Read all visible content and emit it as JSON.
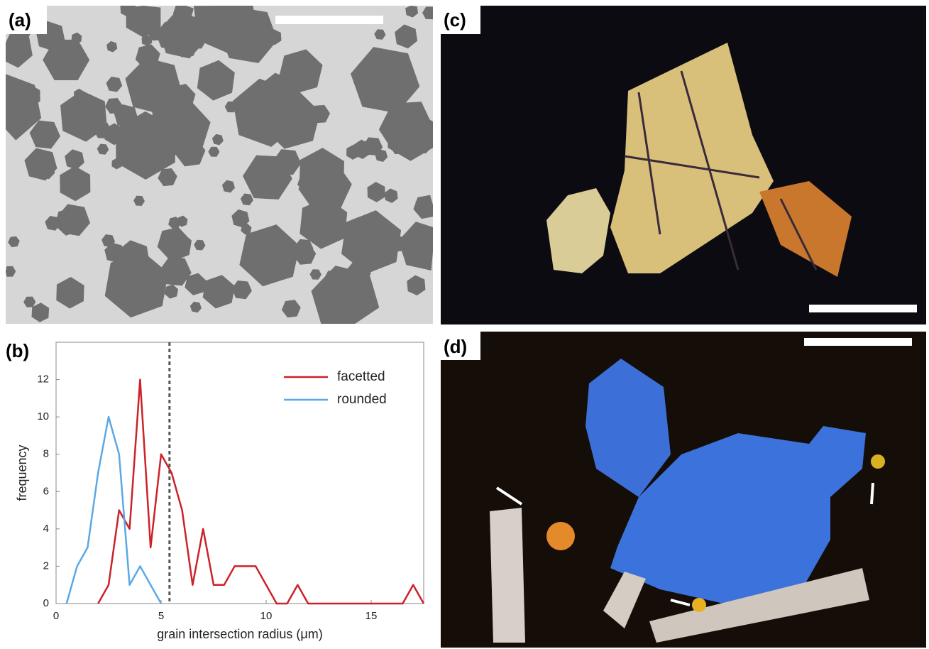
{
  "panel_labels": [
    "(a)",
    "(b)",
    "(c)",
    "(d)"
  ],
  "chart_data": {
    "type": "line",
    "xlabel": "grain intersection radius (μm)",
    "ylabel": "frequency",
    "x": [
      0.5,
      1,
      1.5,
      2,
      2.5,
      3,
      3.5,
      4,
      4.5,
      5,
      5.5,
      6,
      6.5,
      7,
      7.5,
      8,
      8.5,
      9,
      9.5,
      10,
      10.5,
      11,
      11.5,
      12,
      12.5,
      13,
      13.5,
      14,
      14.5,
      15,
      15.5,
      16,
      16.5,
      17,
      17.5
    ],
    "series": [
      {
        "name": "facetted",
        "color": "#cc2229",
        "values": [
          null,
          null,
          null,
          0,
          1,
          5,
          4,
          12,
          3,
          8,
          7,
          5,
          1,
          4,
          1,
          1,
          2,
          2,
          2,
          1,
          0,
          0,
          1,
          0,
          0,
          0,
          0,
          0,
          0,
          0,
          0,
          0,
          0,
          1,
          0
        ]
      },
      {
        "name": "rounded",
        "color": "#5aa8e6",
        "values": [
          0,
          2,
          3,
          7,
          10,
          8,
          1,
          2,
          1,
          0,
          null,
          null,
          null,
          null,
          null,
          null,
          null,
          null,
          null,
          null,
          null,
          null,
          null,
          null,
          null,
          null,
          null,
          null,
          null,
          null,
          null,
          null,
          null,
          null,
          null
        ]
      }
    ],
    "reference_line": 5.4,
    "xlim": [
      0,
      17.5
    ],
    "ylim": [
      0,
      14
    ],
    "xticks": [
      0,
      5,
      10,
      15
    ],
    "yticks": [
      0,
      2,
      4,
      6,
      8,
      10,
      12
    ],
    "legend": "upper right"
  }
}
